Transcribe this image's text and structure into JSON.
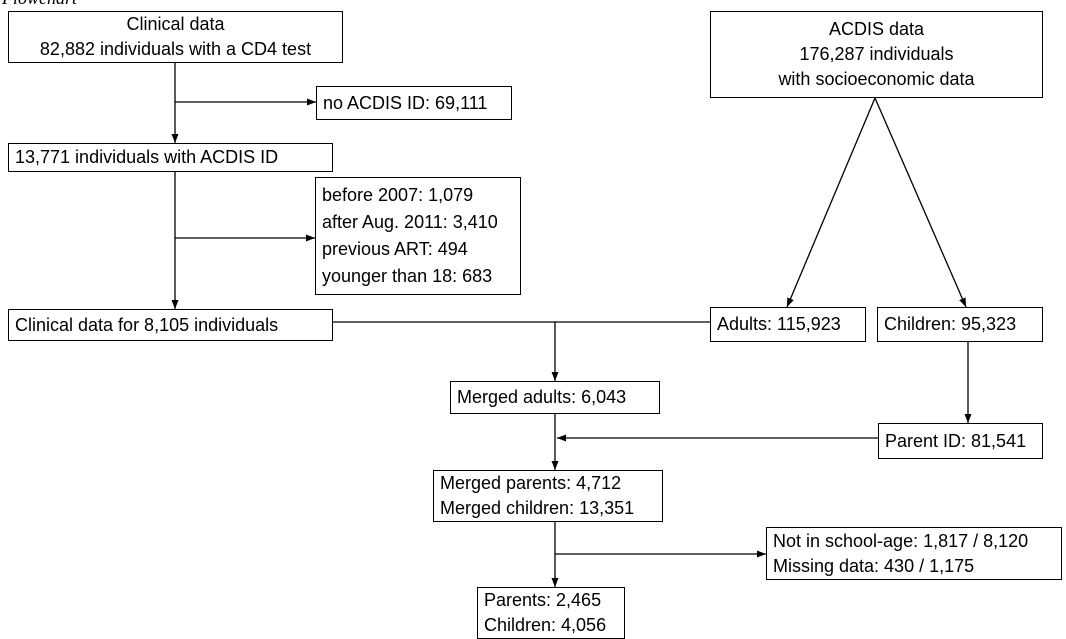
{
  "header_fragment": "Flowchart",
  "boxes": {
    "clinical": [
      "Clinical data",
      "82,882 individuals with a CD4 test"
    ],
    "no_acdis": [
      "no ACDIS ID: 69,111"
    ],
    "with_acdis": [
      "13,771 individuals with ACDIS ID"
    ],
    "exclusions": [
      "before 2007: 1,079",
      "after Aug. 2011: 3,410",
      "previous ART: 494",
      "younger than 18: 683"
    ],
    "clinical_8105": [
      "Clinical data for 8,105 individuals"
    ],
    "acdis": [
      "ACDIS data",
      "176,287 individuals",
      "with socioeconomic data"
    ],
    "adults": [
      "Adults: 115,923"
    ],
    "children": [
      "Children: 95,323"
    ],
    "merged_adults": [
      "Merged adults: 6,043"
    ],
    "parent_id": [
      "Parent ID: 81,541"
    ],
    "merged_parents": [
      "Merged parents: 4,712",
      "Merged children: 13,351"
    ],
    "not_school": [
      "Not in school-age: 1,817 / 8,120",
      "Missing data: 430 / 1,175"
    ],
    "final": [
      "Parents: 2,465",
      "Children: 4,056"
    ]
  }
}
